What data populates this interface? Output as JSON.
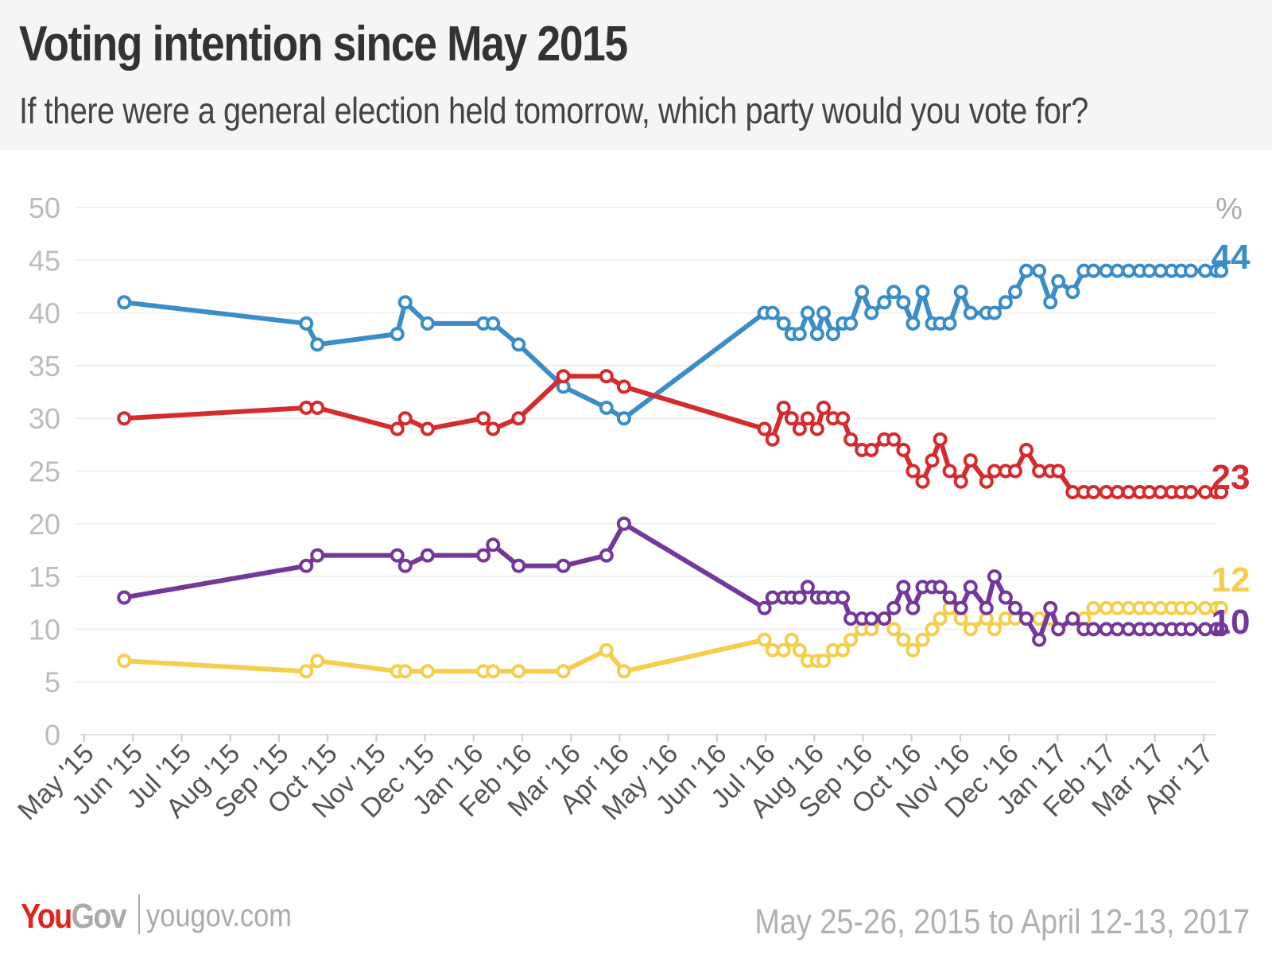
{
  "header": {
    "title": "Voting intention since May 2015",
    "subtitle": "If there were a general election held tomorrow, which party would you vote for?"
  },
  "footer": {
    "logo_you": "You",
    "logo_gov": "Gov",
    "site": "yougov.com",
    "date_range": "May 25-26, 2015 to April 12-13, 2017"
  },
  "chart_data": {
    "type": "line",
    "unit_label": "%",
    "ylim": [
      0,
      50
    ],
    "yticks": [
      "0",
      "5",
      "10",
      "15",
      "20",
      "25",
      "30",
      "35",
      "40",
      "45",
      "50"
    ],
    "x_tick_labels": [
      "May '15",
      "Jun '15",
      "Jul '15",
      "Aug '15",
      "Sep '15",
      "Oct '15",
      "Nov '15",
      "Dec '15",
      "Jan '16",
      "Feb '16",
      "Mar '16",
      "Apr '16",
      "May '16",
      "Jun '16",
      "Jul '16",
      "Aug '16",
      "Sep '16",
      "Oct '16",
      "Nov '16",
      "Dec '16",
      "Jan '17",
      "Feb '17",
      "Mar '17",
      "Apr '17"
    ],
    "grid": true,
    "legend": "end-of-line labels",
    "x": [
      "2015-05-26",
      "2015-09-17",
      "2015-09-24",
      "2015-11-13",
      "2015-11-18",
      "2015-12-02",
      "2016-01-06",
      "2016-01-12",
      "2016-01-28",
      "2016-02-25",
      "2016-03-23",
      "2016-04-03",
      "2016-06-30",
      "2016-07-05",
      "2016-07-12",
      "2016-07-17",
      "2016-07-22",
      "2016-07-27",
      "2016-08-02",
      "2016-08-06",
      "2016-08-12",
      "2016-08-18",
      "2016-08-23",
      "2016-08-30",
      "2016-09-05",
      "2016-09-13",
      "2016-09-19",
      "2016-09-25",
      "2016-10-01",
      "2016-10-07",
      "2016-10-13",
      "2016-10-18",
      "2016-10-24",
      "2016-10-31",
      "2016-11-06",
      "2016-11-16",
      "2016-11-21",
      "2016-11-28",
      "2016-12-04",
      "2016-12-11",
      "2016-12-19",
      "2016-12-26",
      "2016-12-31",
      "2017-01-09",
      "2017-01-16",
      "2017-01-22",
      "2017-01-30",
      "2017-02-06",
      "2017-02-13",
      "2017-02-20",
      "2017-02-26",
      "2017-03-05",
      "2017-03-12",
      "2017-03-18",
      "2017-03-24",
      "2017-04-02",
      "2017-04-09",
      "2017-04-12"
    ],
    "series": [
      {
        "key": "conservative",
        "color": "#3a8dc7",
        "end_label": "44",
        "values": [
          41,
          39,
          37,
          38,
          41,
          39,
          39,
          39,
          37,
          33,
          31,
          30,
          40,
          40,
          39,
          38,
          38,
          40,
          38,
          40,
          38,
          39,
          39,
          42,
          40,
          41,
          42,
          41,
          39,
          42,
          39,
          39,
          39,
          42,
          40,
          40,
          40,
          41,
          42,
          44,
          44,
          41,
          43,
          42,
          44,
          44,
          44,
          44,
          44,
          44,
          44,
          44,
          44,
          44,
          44,
          44,
          44,
          44
        ]
      },
      {
        "key": "labour",
        "color": "#d52b2e",
        "end_label": "23",
        "values": [
          30,
          31,
          31,
          29,
          30,
          29,
          30,
          29,
          30,
          34,
          34,
          33,
          29,
          28,
          31,
          30,
          29,
          30,
          29,
          31,
          30,
          30,
          28,
          27,
          27,
          28,
          28,
          27,
          25,
          24,
          26,
          28,
          25,
          24,
          26,
          24,
          25,
          25,
          25,
          27,
          25,
          25,
          25,
          23,
          23,
          23,
          23,
          23,
          23,
          23,
          23,
          23,
          23,
          23,
          23,
          23,
          23,
          23
        ]
      },
      {
        "key": "libdem",
        "color": "#f3cf4d",
        "end_label": "12",
        "values": [
          7,
          6,
          7,
          6,
          6,
          6,
          6,
          6,
          6,
          6,
          8,
          6,
          9,
          8,
          8,
          9,
          8,
          7,
          7,
          7,
          8,
          8,
          9,
          10,
          10,
          11,
          10,
          9,
          8,
          9,
          10,
          11,
          12,
          11,
          10,
          11,
          10,
          11,
          11,
          11,
          11,
          11,
          10,
          11,
          11,
          12,
          12,
          12,
          12,
          12,
          12,
          12,
          12,
          12,
          12,
          12,
          12,
          12
        ]
      },
      {
        "key": "ukip",
        "color": "#74389a",
        "end_label": "10",
        "values": [
          13,
          16,
          17,
          17,
          16,
          17,
          17,
          18,
          16,
          16,
          17,
          20,
          12,
          13,
          13,
          13,
          13,
          14,
          13,
          13,
          13,
          13,
          11,
          11,
          11,
          11,
          12,
          14,
          12,
          14,
          14,
          14,
          13,
          12,
          14,
          12,
          15,
          13,
          12,
          11,
          9,
          12,
          10,
          11,
          10,
          10,
          10,
          10,
          10,
          10,
          10,
          10,
          10,
          10,
          10,
          10,
          10,
          10
        ]
      }
    ]
  }
}
